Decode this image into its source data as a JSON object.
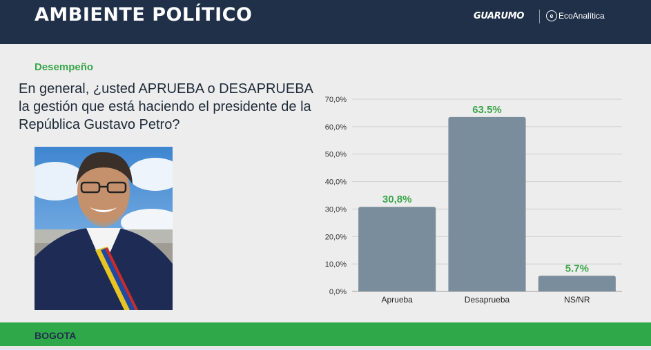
{
  "header": {
    "title": "AMBIENTE POLÍTICO",
    "brands": [
      "GUARUMO",
      "EcoAnalítica"
    ],
    "background": "#1f3048"
  },
  "section_label": "Desempeño",
  "question": "En general, ¿usted APRUEBA o DESAPRUEBA la gestión que está haciendo el presidente de la República Gustavo Petro?",
  "footer": {
    "text": "BOGOTA",
    "background": "#2fa84a"
  },
  "chart_data": {
    "type": "bar",
    "title": "",
    "xlabel": "",
    "ylabel": "",
    "categories": [
      "Aprueba",
      "Desaprueba",
      "NS/NR"
    ],
    "values": [
      30.8,
      63.5,
      5.7
    ],
    "value_labels": [
      "30,8%",
      "63.5%",
      "5.7%"
    ],
    "ylim": [
      0,
      70
    ],
    "yticks": [
      0,
      10,
      20,
      30,
      40,
      50,
      60,
      70
    ],
    "ytick_labels": [
      "0,0%",
      "10,0%",
      "20,0%",
      "30,0%",
      "40,0%",
      "50,0%",
      "60,0%",
      "70,0%"
    ],
    "grid": true,
    "legend": "none",
    "bar_color": "#7a8d9c",
    "label_color": "#3aa64a"
  }
}
